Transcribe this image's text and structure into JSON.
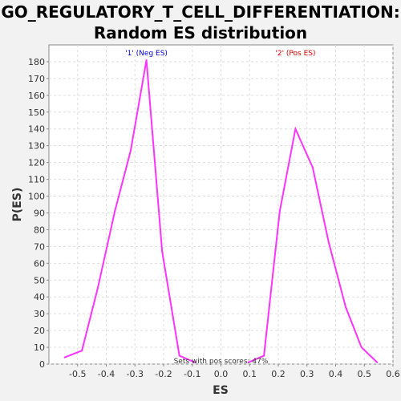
{
  "title_line1": "GO_REGULATORY_T_CELL_DIFFERENTIATION:",
  "title_line2": "Random ES distribution",
  "chart_data": {
    "type": "line",
    "xlabel": "ES",
    "ylabel": "P(ES)",
    "xlim": [
      -0.6,
      0.6
    ],
    "ylim": [
      0,
      190
    ],
    "x_ticks": [
      -0.5,
      -0.4,
      -0.3,
      -0.2,
      -0.1,
      0.0,
      0.1,
      0.2,
      0.3,
      0.4,
      0.5,
      0.6
    ],
    "x_tick_labels": [
      "-0.5",
      "-0.4",
      "-0.3",
      "-0.2",
      "-0.1",
      "0.0",
      "0.1",
      "0.2",
      "0.3",
      "0.4",
      "0.5",
      "0.6"
    ],
    "y_ticks": [
      0,
      10,
      20,
      30,
      40,
      50,
      60,
      70,
      80,
      90,
      100,
      110,
      120,
      130,
      140,
      150,
      160,
      170,
      180
    ],
    "grid": true,
    "line_color": "#ff33ff",
    "series": [
      {
        "x": [
          -0.545,
          -0.485,
          -0.43,
          -0.37,
          -0.315,
          -0.26,
          -0.205,
          -0.145,
          -0.09
        ],
        "y": [
          4,
          8,
          45,
          91,
          127,
          181,
          67,
          5,
          1
        ]
      },
      {
        "x": [
          0.095,
          0.15,
          0.205,
          0.26,
          0.32,
          0.375,
          0.435,
          0.49,
          0.545
        ],
        "y": [
          1,
          5,
          91,
          140,
          117,
          73,
          34,
          10,
          1
        ]
      }
    ],
    "annotations": [
      {
        "text": "'1' (Neg ES)",
        "color": "#0000dd",
        "x": -0.26
      },
      {
        "text": "'2' (Pos ES)",
        "color": "#dd0000",
        "x": 0.26
      },
      {
        "text": "Sets with pos scores: 47%",
        "color": "#333333",
        "x": 0.0
      }
    ]
  }
}
